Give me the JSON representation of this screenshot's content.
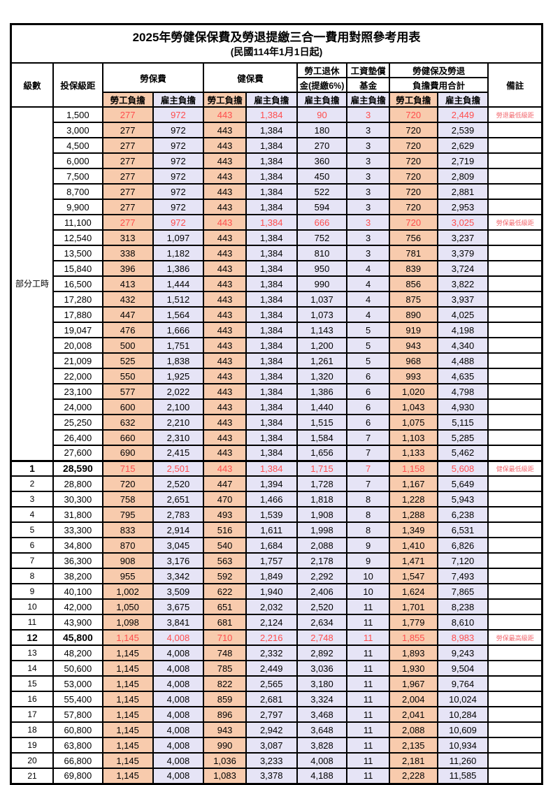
{
  "title": "2025年勞健保保費及勞退提繳三合一費用對照參考用表",
  "subtitle": "(民國114年1月1日起)",
  "colors": {
    "employee_bg": "#F8CBAD",
    "employer_bg": "#E6E4F6",
    "highlight_text": "#FF4D4D",
    "remark_text": "#F2686E",
    "border": "#000000"
  },
  "header": {
    "level": "級數",
    "bracket": "投保級距",
    "labor_insurance": "勞保費",
    "health_insurance": "健保費",
    "pension_line1": "勞工退休",
    "pension_line2": "金(提繳6%)",
    "wage_fund_line1": "工資墊償",
    "wage_fund_line2": "基金",
    "total_line1": "勞健保及勞退",
    "total_line2": "負擔費用合計",
    "remark": "備註",
    "employee_burden": "勞工負擔",
    "employer_burden": "雇主負擔"
  },
  "table": {
    "part_time_label": "部分工時",
    "part_time_span": 23,
    "column_order": [
      "labor_ins_employee",
      "labor_ins_employer",
      "health_ins_employee",
      "health_ins_employer",
      "pension_employer",
      "wage_fund_employer",
      "total_employee",
      "total_employer"
    ],
    "rows": [
      {
        "level": null,
        "bracket": "1,500",
        "values": [
          "277",
          "972",
          "443",
          "1,384",
          "90",
          "3",
          "720",
          "2,449"
        ],
        "remark": "勞退最低級距",
        "red": true,
        "bold": false
      },
      {
        "level": null,
        "bracket": "3,000",
        "values": [
          "277",
          "972",
          "443",
          "1,384",
          "180",
          "3",
          "720",
          "2,539"
        ],
        "remark": "",
        "red": false,
        "bold": false
      },
      {
        "level": null,
        "bracket": "4,500",
        "values": [
          "277",
          "972",
          "443",
          "1,384",
          "270",
          "3",
          "720",
          "2,629"
        ],
        "remark": "",
        "red": false,
        "bold": false
      },
      {
        "level": null,
        "bracket": "6,000",
        "values": [
          "277",
          "972",
          "443",
          "1,384",
          "360",
          "3",
          "720",
          "2,719"
        ],
        "remark": "",
        "red": false,
        "bold": false
      },
      {
        "level": null,
        "bracket": "7,500",
        "values": [
          "277",
          "972",
          "443",
          "1,384",
          "450",
          "3",
          "720",
          "2,809"
        ],
        "remark": "",
        "red": false,
        "bold": false
      },
      {
        "level": null,
        "bracket": "8,700",
        "values": [
          "277",
          "972",
          "443",
          "1,384",
          "522",
          "3",
          "720",
          "2,881"
        ],
        "remark": "",
        "red": false,
        "bold": false
      },
      {
        "level": null,
        "bracket": "9,900",
        "values": [
          "277",
          "972",
          "443",
          "1,384",
          "594",
          "3",
          "720",
          "2,953"
        ],
        "remark": "",
        "red": false,
        "bold": false
      },
      {
        "level": null,
        "bracket": "11,100",
        "values": [
          "277",
          "972",
          "443",
          "1,384",
          "666",
          "3",
          "720",
          "3,025"
        ],
        "remark": "勞保最低級距",
        "red": true,
        "bold": false
      },
      {
        "level": null,
        "bracket": "12,540",
        "values": [
          "313",
          "1,097",
          "443",
          "1,384",
          "752",
          "3",
          "756",
          "3,237"
        ],
        "remark": "",
        "red": false,
        "bold": false
      },
      {
        "level": null,
        "bracket": "13,500",
        "values": [
          "338",
          "1,182",
          "443",
          "1,384",
          "810",
          "3",
          "781",
          "3,379"
        ],
        "remark": "",
        "red": false,
        "bold": false
      },
      {
        "level": null,
        "bracket": "15,840",
        "values": [
          "396",
          "1,386",
          "443",
          "1,384",
          "950",
          "4",
          "839",
          "3,724"
        ],
        "remark": "",
        "red": false,
        "bold": false
      },
      {
        "level": null,
        "bracket": "16,500",
        "values": [
          "413",
          "1,444",
          "443",
          "1,384",
          "990",
          "4",
          "856",
          "3,822"
        ],
        "remark": "",
        "red": false,
        "bold": false
      },
      {
        "level": null,
        "bracket": "17,280",
        "values": [
          "432",
          "1,512",
          "443",
          "1,384",
          "1,037",
          "4",
          "875",
          "3,937"
        ],
        "remark": "",
        "red": false,
        "bold": false
      },
      {
        "level": null,
        "bracket": "17,880",
        "values": [
          "447",
          "1,564",
          "443",
          "1,384",
          "1,073",
          "4",
          "890",
          "4,025"
        ],
        "remark": "",
        "red": false,
        "bold": false
      },
      {
        "level": null,
        "bracket": "19,047",
        "values": [
          "476",
          "1,666",
          "443",
          "1,384",
          "1,143",
          "5",
          "919",
          "4,198"
        ],
        "remark": "",
        "red": false,
        "bold": false
      },
      {
        "level": null,
        "bracket": "20,008",
        "values": [
          "500",
          "1,751",
          "443",
          "1,384",
          "1,200",
          "5",
          "943",
          "4,340"
        ],
        "remark": "",
        "red": false,
        "bold": false
      },
      {
        "level": null,
        "bracket": "21,009",
        "values": [
          "525",
          "1,838",
          "443",
          "1,384",
          "1,261",
          "5",
          "968",
          "4,488"
        ],
        "remark": "",
        "red": false,
        "bold": false
      },
      {
        "level": null,
        "bracket": "22,000",
        "values": [
          "550",
          "1,925",
          "443",
          "1,384",
          "1,320",
          "6",
          "993",
          "4,635"
        ],
        "remark": "",
        "red": false,
        "bold": false
      },
      {
        "level": null,
        "bracket": "23,100",
        "values": [
          "577",
          "2,022",
          "443",
          "1,384",
          "1,386",
          "6",
          "1,020",
          "4,798"
        ],
        "remark": "",
        "red": false,
        "bold": false
      },
      {
        "level": null,
        "bracket": "24,000",
        "values": [
          "600",
          "2,100",
          "443",
          "1,384",
          "1,440",
          "6",
          "1,043",
          "4,930"
        ],
        "remark": "",
        "red": false,
        "bold": false
      },
      {
        "level": null,
        "bracket": "25,250",
        "values": [
          "632",
          "2,210",
          "443",
          "1,384",
          "1,515",
          "6",
          "1,075",
          "5,115"
        ],
        "remark": "",
        "red": false,
        "bold": false
      },
      {
        "level": null,
        "bracket": "26,400",
        "values": [
          "660",
          "2,310",
          "443",
          "1,384",
          "1,584",
          "7",
          "1,103",
          "5,285"
        ],
        "remark": "",
        "red": false,
        "bold": false
      },
      {
        "level": null,
        "bracket": "27,600",
        "values": [
          "690",
          "2,415",
          "443",
          "1,384",
          "1,656",
          "7",
          "1,133",
          "5,462"
        ],
        "remark": "",
        "red": false,
        "bold": false
      },
      {
        "level": "1",
        "bracket": "28,590",
        "values": [
          "715",
          "2,501",
          "443",
          "1,384",
          "1,715",
          "7",
          "1,158",
          "5,608"
        ],
        "remark": "健保最低級距",
        "red": true,
        "bold": true
      },
      {
        "level": "2",
        "bracket": "28,800",
        "values": [
          "720",
          "2,520",
          "447",
          "1,394",
          "1,728",
          "7",
          "1,167",
          "5,649"
        ],
        "remark": "",
        "red": false,
        "bold": false
      },
      {
        "level": "3",
        "bracket": "30,300",
        "values": [
          "758",
          "2,651",
          "470",
          "1,466",
          "1,818",
          "8",
          "1,228",
          "5,943"
        ],
        "remark": "",
        "red": false,
        "bold": false
      },
      {
        "level": "4",
        "bracket": "31,800",
        "values": [
          "795",
          "2,783",
          "493",
          "1,539",
          "1,908",
          "8",
          "1,288",
          "6,238"
        ],
        "remark": "",
        "red": false,
        "bold": false
      },
      {
        "level": "5",
        "bracket": "33,300",
        "values": [
          "833",
          "2,914",
          "516",
          "1,611",
          "1,998",
          "8",
          "1,349",
          "6,531"
        ],
        "remark": "",
        "red": false,
        "bold": false
      },
      {
        "level": "6",
        "bracket": "34,800",
        "values": [
          "870",
          "3,045",
          "540",
          "1,684",
          "2,088",
          "9",
          "1,410",
          "6,826"
        ],
        "remark": "",
        "red": false,
        "bold": false
      },
      {
        "level": "7",
        "bracket": "36,300",
        "values": [
          "908",
          "3,176",
          "563",
          "1,757",
          "2,178",
          "9",
          "1,471",
          "7,120"
        ],
        "remark": "",
        "red": false,
        "bold": false
      },
      {
        "level": "8",
        "bracket": "38,200",
        "values": [
          "955",
          "3,342",
          "592",
          "1,849",
          "2,292",
          "10",
          "1,547",
          "7,493"
        ],
        "remark": "",
        "red": false,
        "bold": false
      },
      {
        "level": "9",
        "bracket": "40,100",
        "values": [
          "1,002",
          "3,509",
          "622",
          "1,940",
          "2,406",
          "10",
          "1,624",
          "7,865"
        ],
        "remark": "",
        "red": false,
        "bold": false
      },
      {
        "level": "10",
        "bracket": "42,000",
        "values": [
          "1,050",
          "3,675",
          "651",
          "2,032",
          "2,520",
          "11",
          "1,701",
          "8,238"
        ],
        "remark": "",
        "red": false,
        "bold": false
      },
      {
        "level": "11",
        "bracket": "43,900",
        "values": [
          "1,098",
          "3,841",
          "681",
          "2,124",
          "2,634",
          "11",
          "1,779",
          "8,610"
        ],
        "remark": "",
        "red": false,
        "bold": false
      },
      {
        "level": "12",
        "bracket": "45,800",
        "values": [
          "1,145",
          "4,008",
          "710",
          "2,216",
          "2,748",
          "11",
          "1,855",
          "8,983"
        ],
        "remark": "勞保最高級距",
        "red": true,
        "bold": true
      },
      {
        "level": "13",
        "bracket": "48,200",
        "values": [
          "1,145",
          "4,008",
          "748",
          "2,332",
          "2,892",
          "11",
          "1,893",
          "9,243"
        ],
        "remark": "",
        "red": false,
        "bold": false
      },
      {
        "level": "14",
        "bracket": "50,600",
        "values": [
          "1,145",
          "4,008",
          "785",
          "2,449",
          "3,036",
          "11",
          "1,930",
          "9,504"
        ],
        "remark": "",
        "red": false,
        "bold": false
      },
      {
        "level": "15",
        "bracket": "53,000",
        "values": [
          "1,145",
          "4,008",
          "822",
          "2,565",
          "3,180",
          "11",
          "1,967",
          "9,764"
        ],
        "remark": "",
        "red": false,
        "bold": false
      },
      {
        "level": "16",
        "bracket": "55,400",
        "values": [
          "1,145",
          "4,008",
          "859",
          "2,681",
          "3,324",
          "11",
          "2,004",
          "10,024"
        ],
        "remark": "",
        "red": false,
        "bold": false
      },
      {
        "level": "17",
        "bracket": "57,800",
        "values": [
          "1,145",
          "4,008",
          "896",
          "2,797",
          "3,468",
          "11",
          "2,041",
          "10,284"
        ],
        "remark": "",
        "red": false,
        "bold": false
      },
      {
        "level": "18",
        "bracket": "60,800",
        "values": [
          "1,145",
          "4,008",
          "943",
          "2,942",
          "3,648",
          "11",
          "2,088",
          "10,609"
        ],
        "remark": "",
        "red": false,
        "bold": false
      },
      {
        "level": "19",
        "bracket": "63,800",
        "values": [
          "1,145",
          "4,008",
          "990",
          "3,087",
          "3,828",
          "11",
          "2,135",
          "10,934"
        ],
        "remark": "",
        "red": false,
        "bold": false
      },
      {
        "level": "20",
        "bracket": "66,800",
        "values": [
          "1,145",
          "4,008",
          "1,036",
          "3,233",
          "4,008",
          "11",
          "2,181",
          "11,260"
        ],
        "remark": "",
        "red": false,
        "bold": false
      },
      {
        "level": "21",
        "bracket": "69,800",
        "values": [
          "1,145",
          "4,008",
          "1,083",
          "3,378",
          "4,188",
          "11",
          "2,228",
          "11,585"
        ],
        "remark": "",
        "red": false,
        "bold": false
      }
    ]
  }
}
